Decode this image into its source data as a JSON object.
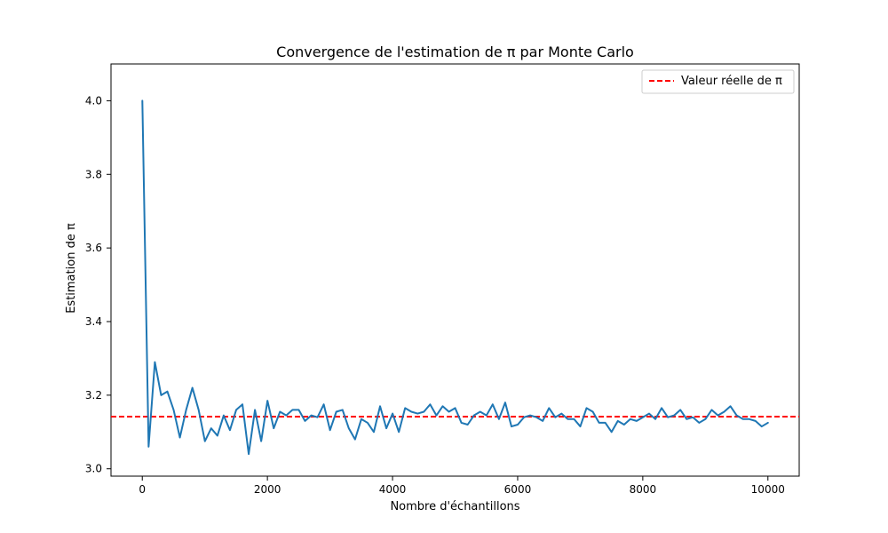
{
  "chart_data": {
    "type": "line",
    "title": "Convergence de l'estimation de π par Monte Carlo",
    "xlabel": "Nombre d'échantillons",
    "ylabel": "Estimation de π",
    "xlim": [
      -500,
      10500
    ],
    "ylim": [
      2.98,
      4.1
    ],
    "x_ticks": [
      0,
      2000,
      4000,
      6000,
      8000,
      10000
    ],
    "y_ticks": [
      3.0,
      3.2,
      3.4,
      3.6,
      3.8,
      4.0
    ],
    "x_tick_labels": [
      "0",
      "2000",
      "4000",
      "6000",
      "8000",
      "10000"
    ],
    "y_tick_labels": [
      "3.0",
      "3.2",
      "3.4",
      "3.6",
      "3.8",
      "4.0"
    ],
    "grid": false,
    "legend_position": "top-right",
    "series": [
      {
        "color": "#1f77b4",
        "style": "solid",
        "x": [
          1,
          101,
          201,
          301,
          401,
          501,
          601,
          701,
          801,
          901,
          1001,
          1101,
          1201,
          1301,
          1401,
          1501,
          1601,
          1701,
          1801,
          1901,
          2001,
          2101,
          2201,
          2301,
          2401,
          2501,
          2601,
          2701,
          2801,
          2901,
          3001,
          3101,
          3201,
          3301,
          3401,
          3501,
          3601,
          3701,
          3801,
          3901,
          4001,
          4101,
          4201,
          4301,
          4401,
          4501,
          4601,
          4701,
          4801,
          4901,
          5001,
          5101,
          5201,
          5301,
          5401,
          5501,
          5601,
          5701,
          5801,
          5901,
          6001,
          6101,
          6201,
          6301,
          6401,
          6501,
          6601,
          6701,
          6801,
          6901,
          7001,
          7101,
          7201,
          7301,
          7401,
          7501,
          7601,
          7701,
          7801,
          7901,
          8001,
          8101,
          8201,
          8301,
          8401,
          8501,
          8601,
          8701,
          8801,
          8901,
          9001,
          9101,
          9201,
          9301,
          9401,
          9501,
          9601,
          9701,
          9801,
          9901,
          10000
        ],
        "y": [
          4.0,
          3.06,
          3.29,
          3.2,
          3.21,
          3.16,
          3.085,
          3.16,
          3.22,
          3.16,
          3.075,
          3.11,
          3.09,
          3.145,
          3.105,
          3.16,
          3.175,
          3.04,
          3.16,
          3.075,
          3.185,
          3.11,
          3.155,
          3.145,
          3.16,
          3.16,
          3.13,
          3.145,
          3.14,
          3.175,
          3.105,
          3.155,
          3.16,
          3.11,
          3.08,
          3.135,
          3.125,
          3.1,
          3.17,
          3.11,
          3.15,
          3.1,
          3.165,
          3.155,
          3.15,
          3.155,
          3.175,
          3.145,
          3.17,
          3.155,
          3.165,
          3.125,
          3.12,
          3.145,
          3.155,
          3.145,
          3.175,
          3.135,
          3.18,
          3.115,
          3.12,
          3.14,
          3.145,
          3.14,
          3.13,
          3.165,
          3.14,
          3.15,
          3.135,
          3.135,
          3.115,
          3.165,
          3.155,
          3.125,
          3.125,
          3.1,
          3.13,
          3.12,
          3.135,
          3.13,
          3.14,
          3.15,
          3.135,
          3.165,
          3.14,
          3.145,
          3.16,
          3.135,
          3.14,
          3.125,
          3.135,
          3.16,
          3.145,
          3.155,
          3.17,
          3.145,
          3.135,
          3.135,
          3.13,
          3.115,
          3.125
        ]
      },
      {
        "name": "Valeur réelle de π",
        "color": "#ff0000",
        "style": "dashed",
        "constant_y": 3.14159
      }
    ]
  }
}
